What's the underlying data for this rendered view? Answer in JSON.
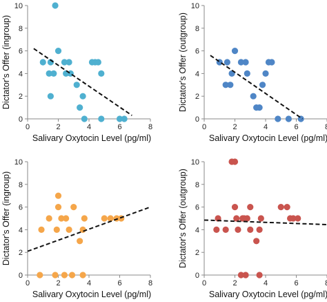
{
  "chart_data": [
    {
      "type": "scatter",
      "xlabel": "Salivary Oxytocin Level (pg/ml)",
      "ylabel": "Dictator's Offer (ingroup)",
      "xlim": [
        0,
        8
      ],
      "ylim": [
        0,
        10
      ],
      "xticks": [
        "0",
        "2",
        "4",
        "6",
        "8"
      ],
      "yticks": [
        "0",
        "2",
        "4",
        "6",
        "8",
        "10"
      ],
      "color": "#4fb0d0",
      "points": [
        [
          1.0,
          5
        ],
        [
          1.5,
          5
        ],
        [
          1.4,
          4
        ],
        [
          1.5,
          2
        ],
        [
          1.7,
          4
        ],
        [
          1.8,
          10
        ],
        [
          2.0,
          6
        ],
        [
          2.4,
          5
        ],
        [
          2.5,
          4
        ],
        [
          2.7,
          5
        ],
        [
          2.8,
          4
        ],
        [
          3.2,
          3
        ],
        [
          3.4,
          1
        ],
        [
          3.6,
          2
        ],
        [
          3.7,
          0
        ],
        [
          4.2,
          5
        ],
        [
          4.4,
          5
        ],
        [
          4.6,
          5
        ],
        [
          4.8,
          4
        ],
        [
          4.8,
          0
        ],
        [
          6.0,
          0
        ],
        [
          6.3,
          0
        ]
      ],
      "trendline": {
        "x": [
          0.4,
          6.8
        ],
        "y": [
          6.2,
          0.3
        ],
        "style": "dashed"
      },
      "grid": false
    },
    {
      "type": "scatter",
      "xlabel": "Salivary Oxytocin Level (pg/ml)",
      "ylabel": "Dictator's Offer (outgroup)",
      "xlim": [
        0,
        8
      ],
      "ylim": [
        0,
        10
      ],
      "xticks": [
        "0",
        "2",
        "4",
        "6",
        "8"
      ],
      "yticks": [
        "0",
        "2",
        "4",
        "6",
        "8",
        "10"
      ],
      "color": "#4f86c6",
      "points": [
        [
          1.0,
          5
        ],
        [
          1.4,
          3
        ],
        [
          1.5,
          5
        ],
        [
          1.7,
          3
        ],
        [
          1.8,
          4
        ],
        [
          2.0,
          6
        ],
        [
          2.4,
          5
        ],
        [
          2.7,
          5
        ],
        [
          2.8,
          4
        ],
        [
          3.2,
          2
        ],
        [
          3.4,
          1
        ],
        [
          3.6,
          1
        ],
        [
          3.8,
          3
        ],
        [
          4.0,
          4
        ],
        [
          4.2,
          5
        ],
        [
          4.4,
          5
        ],
        [
          4.8,
          0
        ],
        [
          5.5,
          0
        ],
        [
          6.3,
          0
        ]
      ],
      "trendline": {
        "x": [
          0.4,
          6.4
        ],
        "y": [
          5.6,
          0.0
        ],
        "style": "dashed"
      },
      "grid": false
    },
    {
      "type": "scatter",
      "xlabel": "Salivary Oxytocin Level (pg/ml)",
      "ylabel": "Dictator's Offer (ingroup)",
      "xlim": [
        0,
        8
      ],
      "ylim": [
        0,
        10
      ],
      "xticks": [
        "0",
        "2",
        "4",
        "6",
        "8"
      ],
      "yticks": [
        "0",
        "2",
        "4",
        "6",
        "8",
        "10"
      ],
      "color": "#f5a64a",
      "points": [
        [
          0.8,
          0
        ],
        [
          0.9,
          4
        ],
        [
          1.4,
          5
        ],
        [
          1.8,
          0
        ],
        [
          1.9,
          4
        ],
        [
          2.0,
          7
        ],
        [
          2.0,
          6
        ],
        [
          2.2,
          5
        ],
        [
          2.4,
          0
        ],
        [
          2.5,
          5
        ],
        [
          2.7,
          4
        ],
        [
          2.9,
          0
        ],
        [
          3.0,
          6
        ],
        [
          3.4,
          3
        ],
        [
          3.6,
          0
        ],
        [
          3.6,
          4
        ],
        [
          3.7,
          5
        ],
        [
          5.0,
          5
        ],
        [
          5.4,
          5
        ],
        [
          5.8,
          5
        ],
        [
          6.1,
          5
        ]
      ],
      "trendline": {
        "x": [
          0.0,
          8.0
        ],
        "y": [
          2.1,
          6.0
        ],
        "style": "dashed"
      },
      "grid": false
    },
    {
      "type": "scatter",
      "xlabel": "Salivary Oxytocin Level (pg/ml)",
      "ylabel": "Dictator's Offer (outgroup)",
      "xlim": [
        0,
        8
      ],
      "ylim": [
        0,
        10
      ],
      "xticks": [
        "0",
        "2",
        "4",
        "6",
        "8"
      ],
      "yticks": [
        "0",
        "2",
        "4",
        "6",
        "8",
        "10"
      ],
      "color": "#c9544e",
      "points": [
        [
          0.8,
          4
        ],
        [
          0.9,
          5
        ],
        [
          1.4,
          4
        ],
        [
          1.8,
          10
        ],
        [
          2.0,
          10
        ],
        [
          2.0,
          6
        ],
        [
          2.1,
          5
        ],
        [
          2.2,
          4
        ],
        [
          2.4,
          0
        ],
        [
          2.5,
          5
        ],
        [
          2.6,
          5
        ],
        [
          2.7,
          0
        ],
        [
          2.8,
          5
        ],
        [
          3.0,
          4
        ],
        [
          3.0,
          6
        ],
        [
          3.4,
          3
        ],
        [
          3.6,
          0
        ],
        [
          3.6,
          4
        ],
        [
          3.7,
          5
        ],
        [
          5.0,
          6
        ],
        [
          5.4,
          6
        ],
        [
          5.6,
          5
        ],
        [
          5.8,
          5
        ],
        [
          6.1,
          5
        ]
      ],
      "trendline": {
        "x": [
          0.0,
          8.0
        ],
        "y": [
          4.85,
          4.45
        ],
        "style": "dashed"
      },
      "grid": false
    }
  ]
}
